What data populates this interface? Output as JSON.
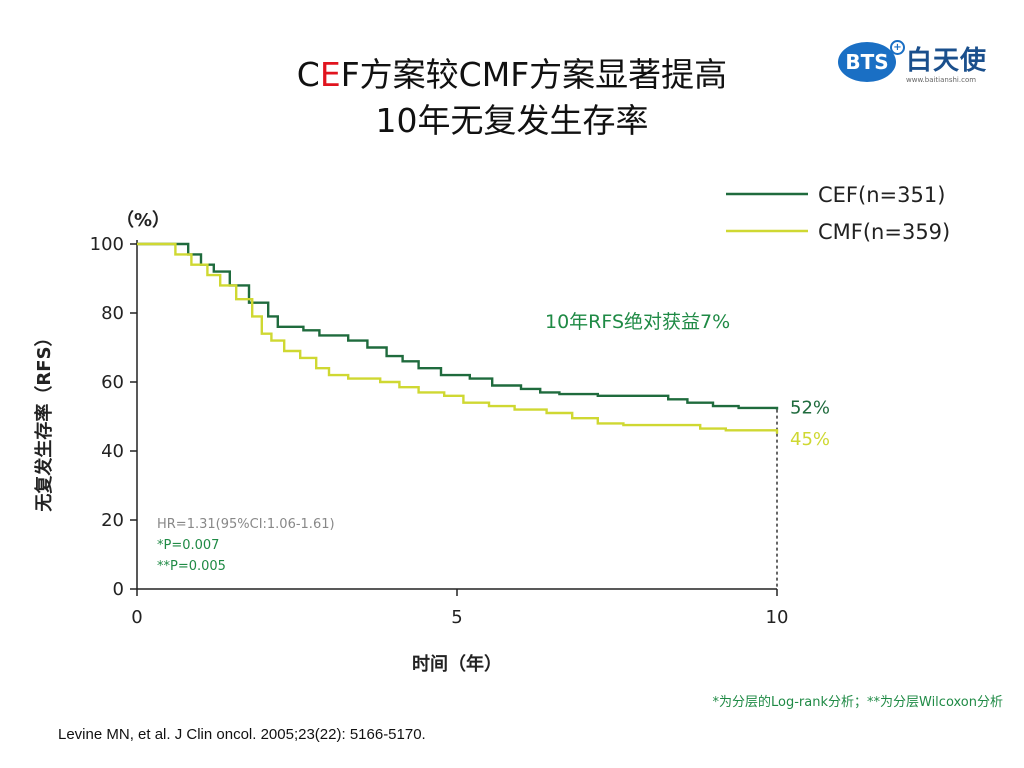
{
  "slide": {
    "title_parts": [
      "C",
      "E",
      "F方案较CMF方案显著提高"
    ],
    "title_line2": "10年无复发生存率",
    "citation": "Levine MN, et al. J Clin oncol. 2005;23(22): 5166-5170."
  },
  "logo": {
    "badge": "BTS",
    "plus": "+",
    "name": "白天使",
    "url": "www.baitianshi.com"
  },
  "colors": {
    "title_accent": "#e0141e",
    "cef": "#1f6b3d",
    "cmf": "#cfd832",
    "annotation": "#1f8a45",
    "stats_gray": "#888888"
  },
  "chart_data": {
    "type": "line",
    "xlabel": "时间（年）",
    "ylabel": "无复发生存率（RFS）",
    "yunit": "（%）",
    "xlim": [
      0,
      10
    ],
    "ylim": [
      0,
      100
    ],
    "xticks": [
      0,
      5,
      10
    ],
    "yticks": [
      0,
      20,
      40,
      60,
      80,
      100
    ],
    "legend_position": "top-right",
    "series": [
      {
        "name": "CEF(n=351)",
        "color": "#1f6b3d",
        "end_label": "52%",
        "points": [
          [
            0,
            100
          ],
          [
            0.55,
            100
          ],
          [
            0.8,
            97
          ],
          [
            1.0,
            94
          ],
          [
            1.2,
            92
          ],
          [
            1.45,
            88
          ],
          [
            1.75,
            83
          ],
          [
            2.05,
            79
          ],
          [
            2.2,
            76
          ],
          [
            2.6,
            75
          ],
          [
            2.85,
            73.5
          ],
          [
            3.3,
            72
          ],
          [
            3.6,
            70
          ],
          [
            3.9,
            67.5
          ],
          [
            4.15,
            66
          ],
          [
            4.4,
            64
          ],
          [
            4.75,
            62
          ],
          [
            5.2,
            61
          ],
          [
            5.55,
            59
          ],
          [
            6.0,
            58
          ],
          [
            6.3,
            57
          ],
          [
            6.6,
            56.5
          ],
          [
            7.2,
            56
          ],
          [
            8.0,
            56
          ],
          [
            8.3,
            55
          ],
          [
            8.6,
            54
          ],
          [
            9.0,
            53
          ],
          [
            9.4,
            52.5
          ],
          [
            10,
            52
          ]
        ]
      },
      {
        "name": "CMF(n=359)",
        "color": "#cfd832",
        "end_label": "45%",
        "points": [
          [
            0,
            100
          ],
          [
            0.4,
            100
          ],
          [
            0.6,
            97
          ],
          [
            0.85,
            94
          ],
          [
            1.1,
            91
          ],
          [
            1.3,
            88
          ],
          [
            1.55,
            84
          ],
          [
            1.8,
            79
          ],
          [
            1.95,
            74
          ],
          [
            2.1,
            72
          ],
          [
            2.3,
            69
          ],
          [
            2.55,
            67
          ],
          [
            2.8,
            64
          ],
          [
            3.0,
            62
          ],
          [
            3.3,
            61
          ],
          [
            3.8,
            60
          ],
          [
            4.1,
            58.5
          ],
          [
            4.4,
            57
          ],
          [
            4.8,
            56
          ],
          [
            5.1,
            54
          ],
          [
            5.5,
            53
          ],
          [
            5.9,
            52
          ],
          [
            6.4,
            51
          ],
          [
            6.8,
            49.5
          ],
          [
            7.2,
            48
          ],
          [
            7.6,
            47.5
          ],
          [
            8.2,
            47.5
          ],
          [
            8.8,
            46.5
          ],
          [
            9.2,
            46
          ],
          [
            10,
            45
          ]
        ]
      }
    ],
    "annotation": "10年RFS绝对获益7%",
    "stats_lines": [
      "HR=1.31(95%CI:1.06-1.61)",
      "*P=0.007",
      "**P=0.005"
    ],
    "footnote": "*为分层的Log-rank分析；**为分层Wilcoxon分析"
  }
}
